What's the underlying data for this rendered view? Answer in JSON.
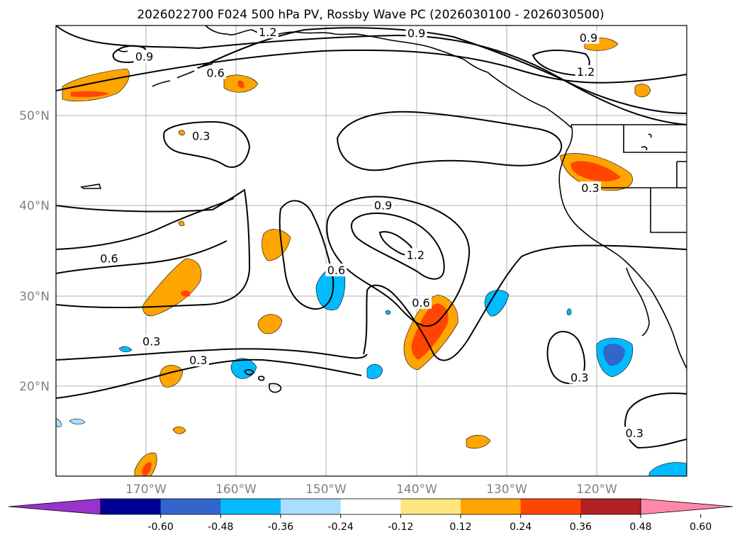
{
  "chart_data": {
    "type": "contour_map",
    "title": "2026022700 F024 500 hPa PV, Rossby Wave PC (2026030100 - 2026030500)",
    "lon_range": [
      -180,
      -110
    ],
    "lat_range": [
      10,
      60
    ],
    "lat_ticks": [
      {
        "value": 50,
        "label": "50°N"
      },
      {
        "value": 40,
        "label": "40°N"
      },
      {
        "value": 30,
        "label": "30°N"
      },
      {
        "value": 20,
        "label": "20°N"
      }
    ],
    "lon_ticks": [
      {
        "value": -170,
        "label": "170°W"
      },
      {
        "value": -160,
        "label": "160°W"
      },
      {
        "value": -150,
        "label": "150°W"
      },
      {
        "value": -140,
        "label": "140°W"
      },
      {
        "value": -130,
        "label": "130°W"
      },
      {
        "value": -120,
        "label": "120°W"
      }
    ],
    "colorbar": {
      "colors": [
        "#9933cc",
        "#000099",
        "#3366cc",
        "#00bbff",
        "#aaddff",
        "#ffffff",
        "#ffe680",
        "#ffa500",
        "#ff4500",
        "#b22222",
        "#ff88aa"
      ],
      "labels": [
        "-0.60",
        "-0.48",
        "-0.36",
        "-0.24",
        "-0.12",
        "0.12",
        "0.24",
        "0.36",
        "0.48",
        "0.60"
      ]
    },
    "contour_labels": [
      {
        "text": "0.9",
        "lon": -170.2,
        "lat": 56.5
      },
      {
        "text": "0.6",
        "lon": -162.3,
        "lat": 54.7
      },
      {
        "text": "1.2",
        "lon": -156.5,
        "lat": 59.2
      },
      {
        "text": "0.9",
        "lon": -140.0,
        "lat": 59.1
      },
      {
        "text": "0.9",
        "lon": -120.9,
        "lat": 58.6
      },
      {
        "text": "1.2",
        "lon": -121.2,
        "lat": 54.8
      },
      {
        "text": "0.3",
        "lon": -163.9,
        "lat": 47.7
      },
      {
        "text": "0.3",
        "lon": -120.7,
        "lat": 41.9
      },
      {
        "text": "0.9",
        "lon": -143.7,
        "lat": 40.0
      },
      {
        "text": "1.2",
        "lon": -140.1,
        "lat": 34.5
      },
      {
        "text": "0.6",
        "lon": -174.1,
        "lat": 34.1
      },
      {
        "text": "0.6",
        "lon": -148.9,
        "lat": 32.8
      },
      {
        "text": "0.6",
        "lon": -139.5,
        "lat": 29.2
      },
      {
        "text": "0.3",
        "lon": -169.4,
        "lat": 24.9
      },
      {
        "text": "0.3",
        "lon": -164.2,
        "lat": 22.8
      },
      {
        "text": "0.3",
        "lon": -121.9,
        "lat": 20.9
      },
      {
        "text": "0.3",
        "lon": -115.8,
        "lat": 14.7
      }
    ]
  }
}
